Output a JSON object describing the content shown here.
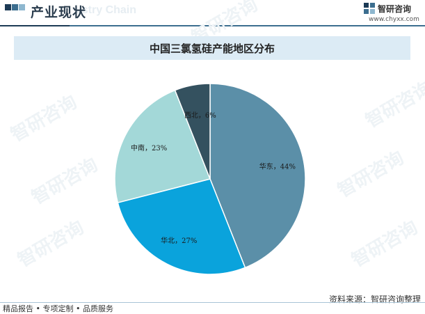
{
  "header": {
    "section_title": "产业现状",
    "ghost_text": "ustry Chain",
    "brand_name": "智研咨询",
    "brand_url": "www.chyxx.com"
  },
  "watermark_text": "智研咨询",
  "colors": {
    "east": "#5b8fa8",
    "north": "#0aa3dc",
    "south_central": "#a3d8d8",
    "northwest": "#34515f",
    "title_bg": "#dcebf5",
    "header_rule": "#3c6e8f"
  },
  "chart_data": {
    "type": "pie",
    "title": "中国三氯氢硅产能地区分布",
    "slices": [
      {
        "name": "华东",
        "value": 44,
        "label": "华东，44%"
      },
      {
        "name": "华北",
        "value": 27,
        "label": "华北，27%"
      },
      {
        "name": "中南",
        "value": 23,
        "label": "中南，23%"
      },
      {
        "name": "西北",
        "value": 6,
        "label": "西北，6%"
      }
    ],
    "start": "12 o'clock",
    "direction": "clockwise"
  },
  "footer": {
    "source": "资料来源：智研咨询整理",
    "tagline": "精品报告 • 专项定制 • 品质服务"
  }
}
